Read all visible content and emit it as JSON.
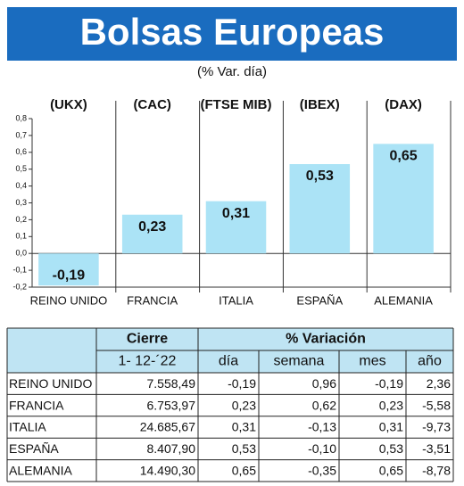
{
  "chart_data": {
    "type": "bar",
    "title": "Bolsas Europeas",
    "subtitle": "(% Var. día)",
    "indices": [
      "(UKX)",
      "(CAC)",
      "(FTSE MIB)",
      "(IBEX)",
      "(DAX)"
    ],
    "categories": [
      "REINO UNIDO",
      "FRANCIA",
      "ITALIA",
      "ESPAÑA",
      "ALEMANIA"
    ],
    "values": [
      -0.19,
      0.23,
      0.31,
      0.53,
      0.65
    ],
    "value_labels": [
      "-0,19",
      "0,23",
      "0,31",
      "0,53",
      "0,65"
    ],
    "color": "#abe3f6",
    "ylim": [
      -0.2,
      0.8
    ],
    "yticks": [
      {
        "value": -0.2,
        "label": "-0,2"
      },
      {
        "value": -0.1,
        "label": "-0,1"
      },
      {
        "value": 0,
        "label": "0,0"
      },
      {
        "value": 0.1,
        "label": "0,1"
      },
      {
        "value": 0.2,
        "label": "0,2"
      },
      {
        "value": 0.3,
        "label": "0,3"
      },
      {
        "value": 0.4,
        "label": "0,4"
      },
      {
        "value": 0.5,
        "label": "0,5"
      },
      {
        "value": 0.6,
        "label": "0,6"
      },
      {
        "value": 0.7,
        "label": "0,7"
      },
      {
        "value": 0.8,
        "label": "0,8"
      }
    ],
    "grid": false
  },
  "table": {
    "header": [
      [
        "Cierre",
        "% Variación"
      ],
      [
        "1- 12-´22",
        "día",
        "semana",
        "mes",
        "año"
      ]
    ],
    "rows": [
      [
        "REINO UNIDO",
        "7.558,49",
        "-0,19",
        "0,96",
        "-0,19",
        "2,36"
      ],
      [
        "FRANCIA",
        "6.753,97",
        "0,23",
        "0,62",
        "0,23",
        "-5,58"
      ],
      [
        "ITALIA",
        "24.685,67",
        "0,31",
        "-0,13",
        "0,31",
        "-9,73"
      ],
      [
        "ESPAÑA",
        "8.407,90",
        "0,53",
        "-0,10",
        "0,53",
        "-3,51"
      ],
      [
        "ALEMANIA",
        "14.490,30",
        "0,65",
        "-0,35",
        "0,65",
        "-8,78"
      ]
    ]
  }
}
